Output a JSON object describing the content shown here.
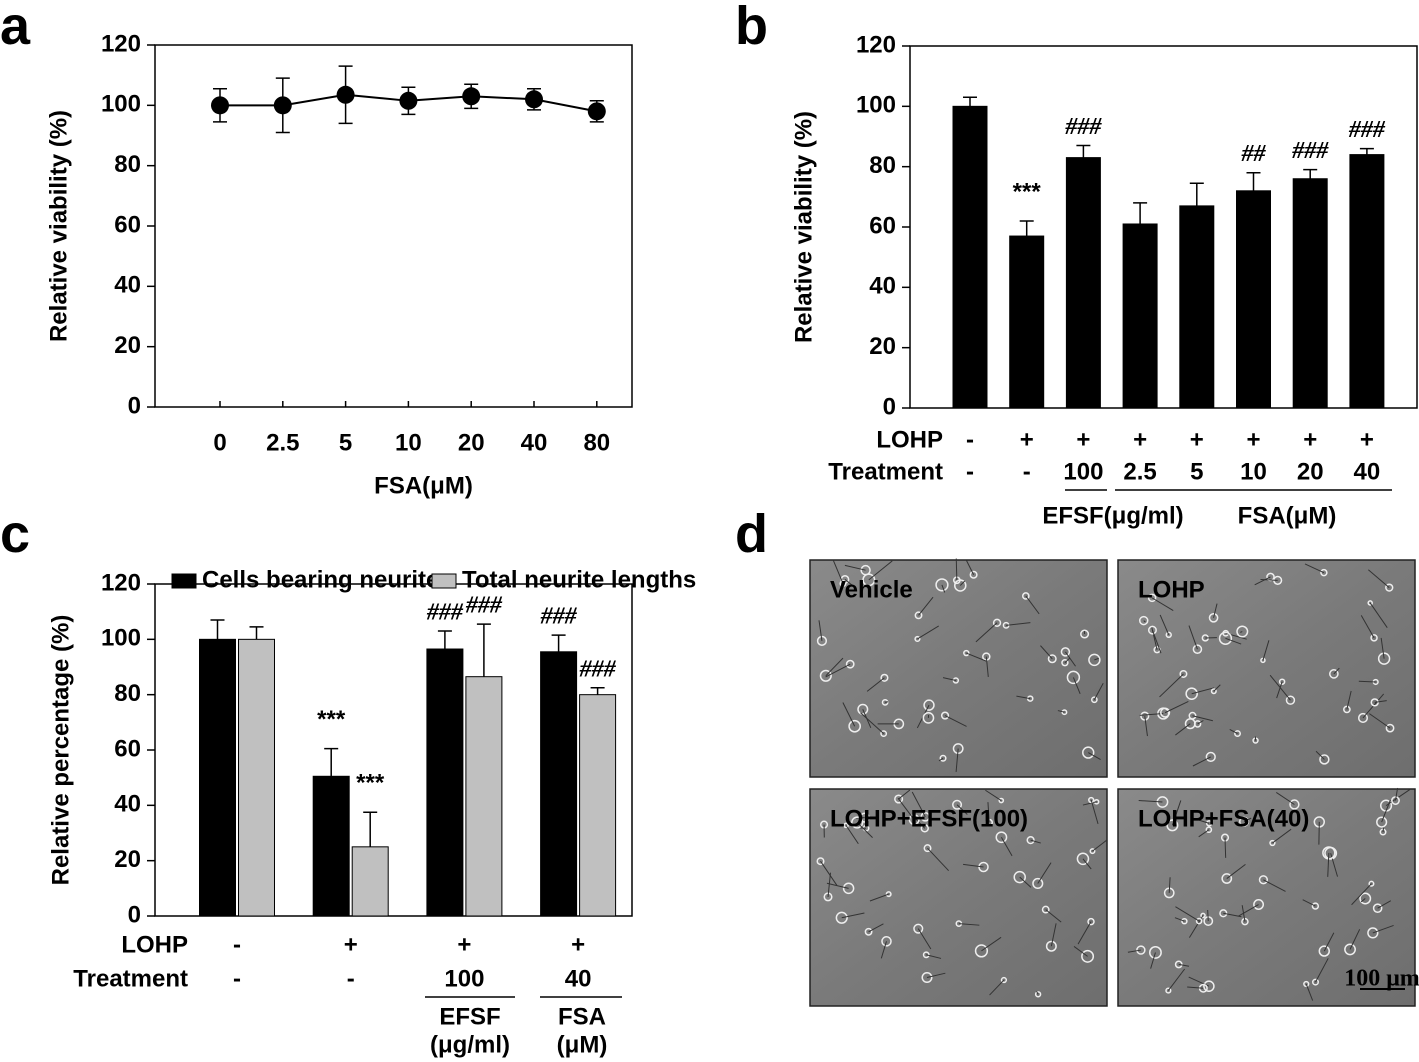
{
  "chart_data": [
    {
      "type": "line",
      "label": "a",
      "ylabel": "Relative viability (%)",
      "xlabel": "FSA(μM)",
      "categories": [
        "0",
        "2.5",
        "5",
        "10",
        "20",
        "40",
        "80"
      ],
      "series": [
        {
          "color": "#000000",
          "values": [
            100,
            100,
            103.5,
            101.5,
            103,
            102,
            98
          ],
          "errors": [
            5.5,
            9,
            9.5,
            4.5,
            4,
            3.5,
            3.5
          ]
        }
      ],
      "ylim": [
        0,
        120
      ],
      "yticks": [
        0,
        20,
        40,
        60,
        80,
        100,
        120
      ]
    },
    {
      "type": "bar",
      "label": "b",
      "ylabel": "Relative viability (%)",
      "series": [
        {
          "color": "#000000",
          "values": [
            100,
            57,
            83,
            61,
            67,
            72,
            76,
            84
          ],
          "errors": [
            3,
            5,
            4,
            7,
            7.5,
            6,
            3,
            2
          ],
          "annotations": [
            null,
            "***",
            "###",
            null,
            null,
            "##",
            "###",
            "###"
          ]
        }
      ],
      "rows": [
        {
          "name": "LOHP",
          "values": [
            "-",
            "+",
            "+",
            "+",
            "+",
            "+",
            "+",
            "+"
          ]
        },
        {
          "name": "Treatment",
          "values": [
            "-",
            "-",
            "100",
            "2.5",
            "5",
            "10",
            "20",
            "40"
          ]
        }
      ],
      "groups": [
        "EFSF(μg/ml)",
        "FSA(μM)"
      ],
      "ylim": [
        0,
        120
      ],
      "yticks": [
        0,
        20,
        40,
        60,
        80,
        100,
        120
      ]
    },
    {
      "type": "bar",
      "label": "c",
      "ylabel": "Relative percentage (%)",
      "legend": "top",
      "series": [
        {
          "name": "Cells bearing neurites",
          "color": "#000000",
          "values": [
            100,
            50.5,
            96.5,
            95.5
          ],
          "errors": [
            7,
            10,
            6.5,
            6
          ],
          "annotations": [
            null,
            "***",
            "###",
            "###"
          ]
        },
        {
          "name": "Total neurite lengths",
          "color": "#c0c0c0",
          "values": [
            100,
            25,
            86.5,
            80
          ],
          "errors": [
            4.5,
            12.5,
            19,
            2.5
          ],
          "annotations": [
            null,
            "***",
            "###",
            "###"
          ]
        }
      ],
      "rows": [
        {
          "name": "LOHP",
          "values": [
            "-",
            "+",
            "+",
            "+"
          ]
        },
        {
          "name": "Treatment",
          "values": [
            "-",
            "-",
            "100",
            "40"
          ]
        }
      ],
      "groups": [
        [
          "EFSF",
          "(μg/ml)"
        ],
        [
          "FSA",
          "(μM)"
        ]
      ],
      "ylim": [
        0,
        120
      ],
      "yticks": [
        0,
        20,
        40,
        60,
        80,
        100,
        120
      ]
    }
  ],
  "images": {
    "label": "d",
    "captions": [
      "Vehicle",
      "LOHP",
      "LOHP+EFSF(100)",
      "LOHP+FSA(40)"
    ],
    "scale_bar": "100 μm"
  }
}
